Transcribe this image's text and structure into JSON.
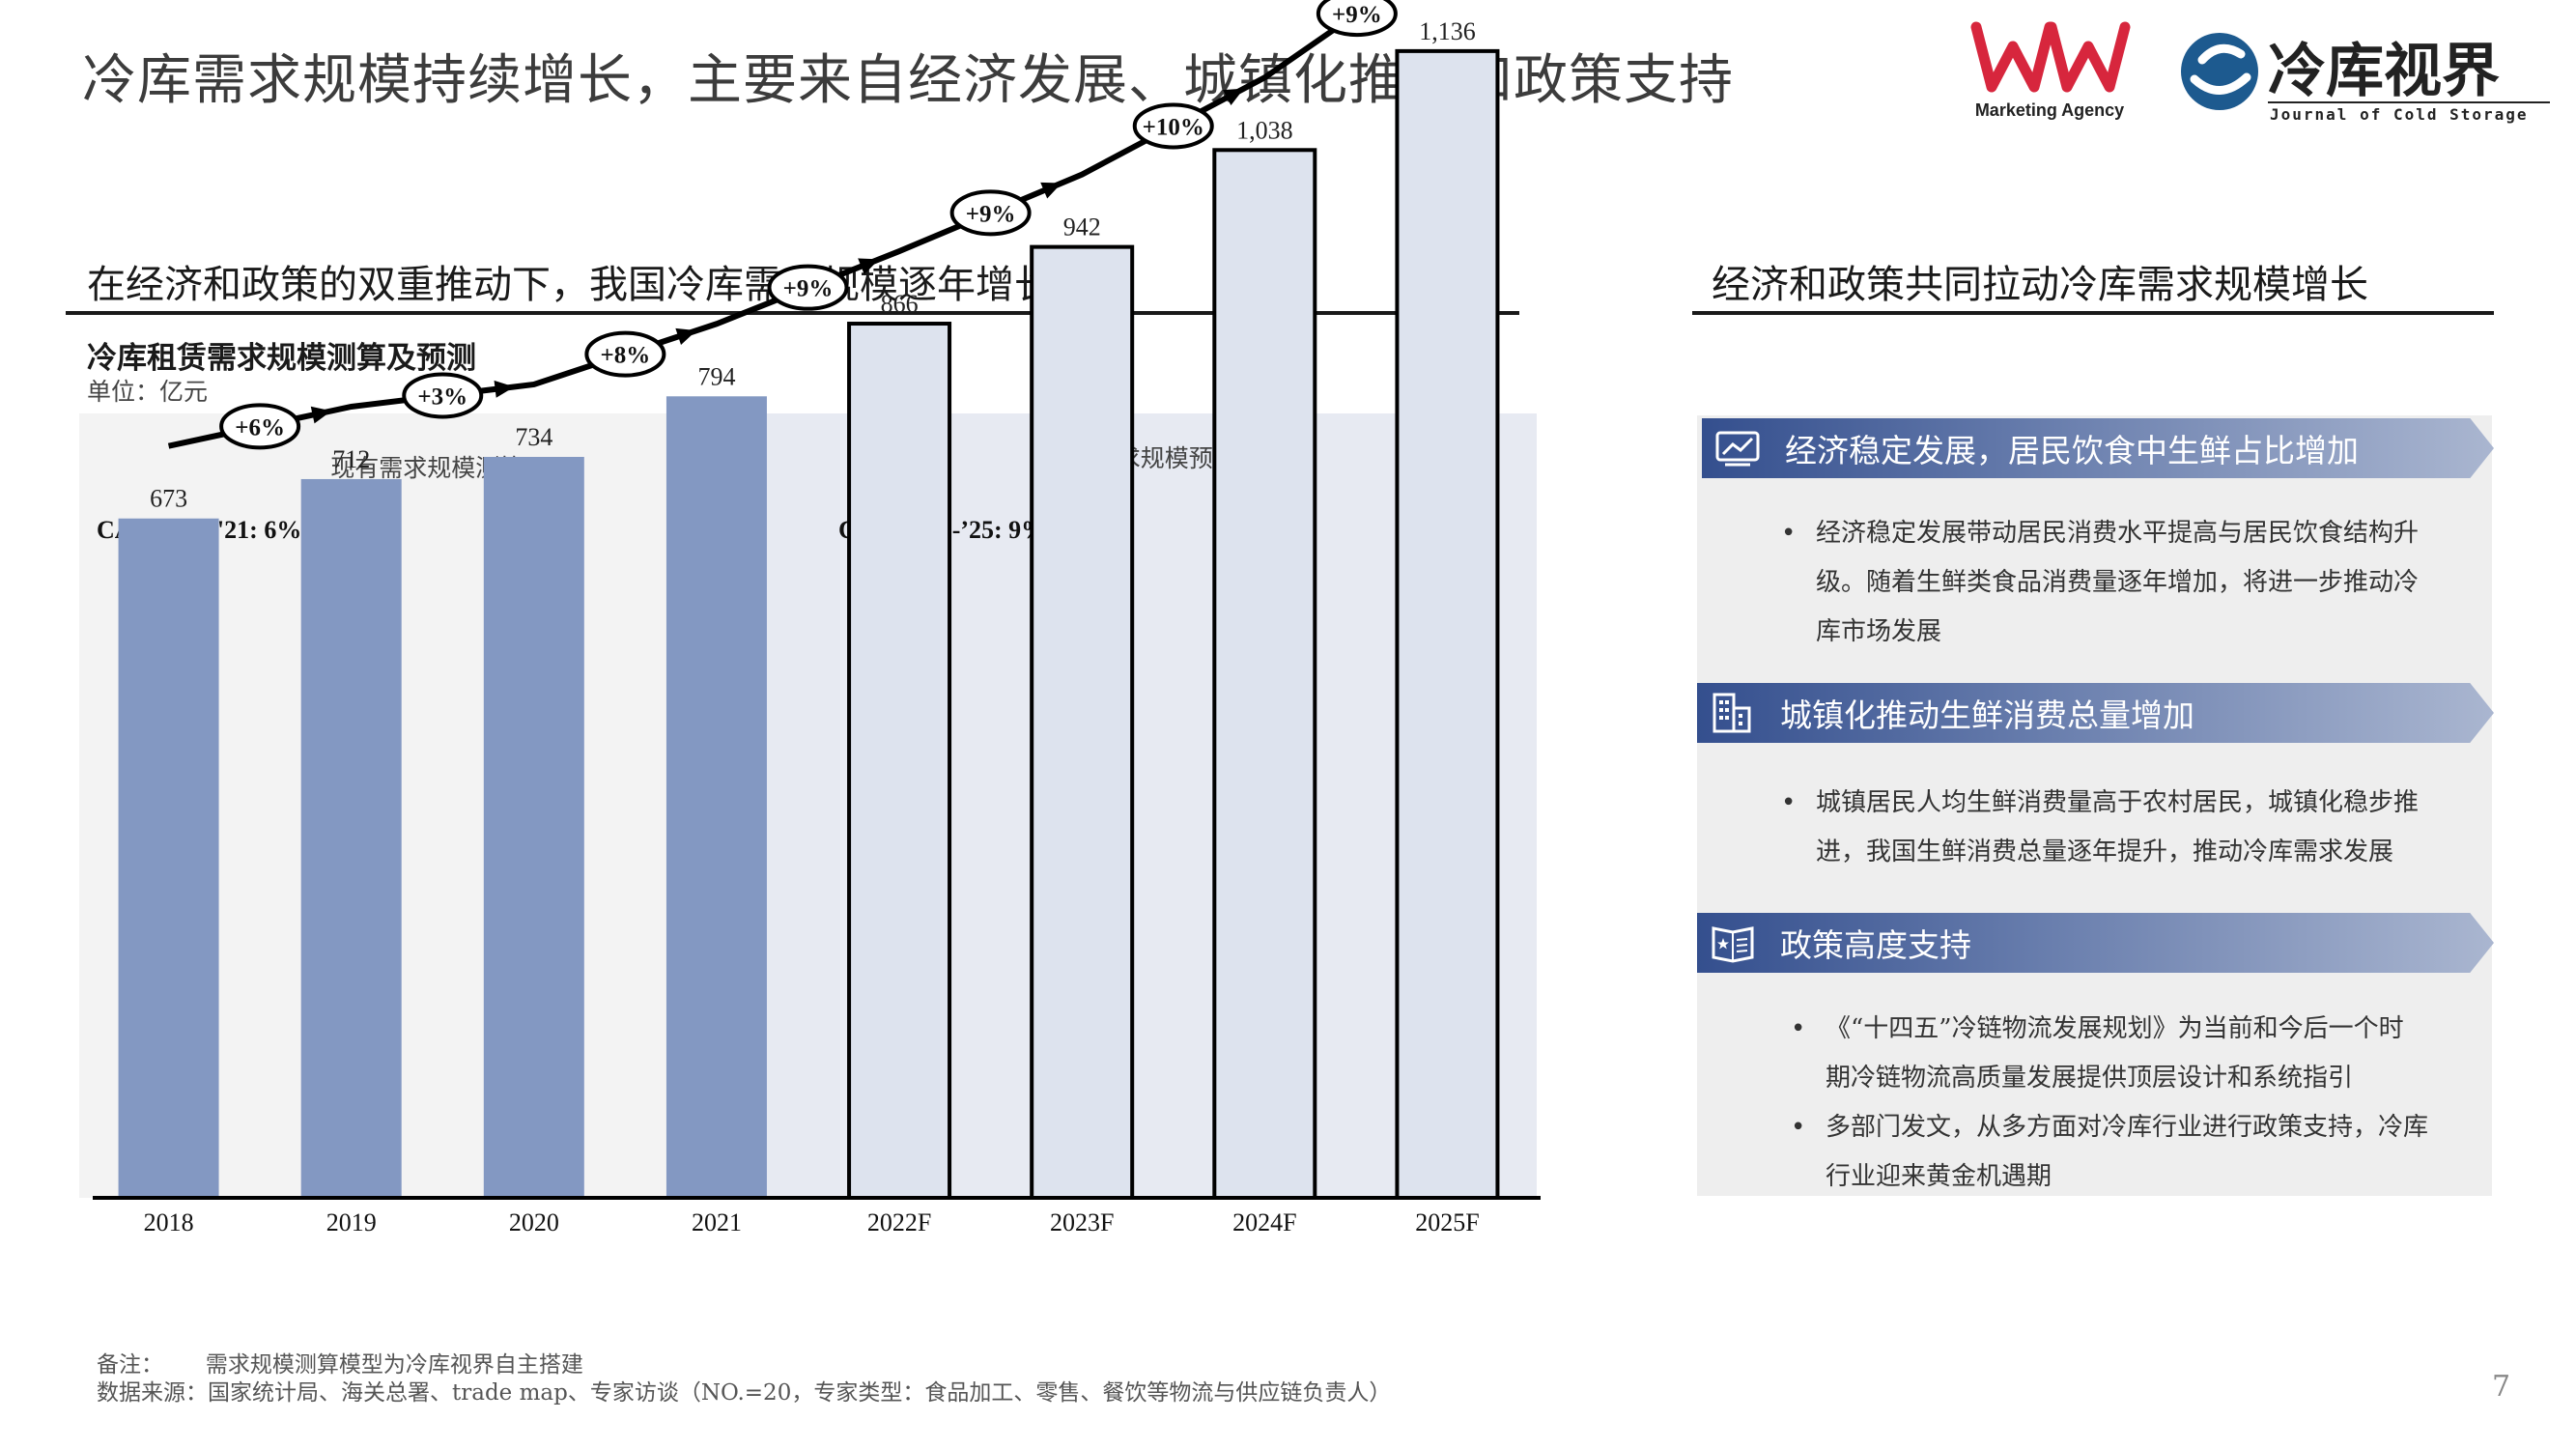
{
  "header": {
    "title": "冷库需求规模持续增长，主要来自经济发展、城镇化推进和政策支持",
    "logo_ma_text": "Marketing Agency",
    "logo_cs_name": "冷库视界",
    "logo_cs_sub": "Journal of Cold Storage"
  },
  "left": {
    "heading": "在经济和政策的双重推动下，我国冷库需求规模逐年增长",
    "chart_title": "冷库租赁需求规模测算及预测",
    "unit": "单位：亿元"
  },
  "chart_data": {
    "type": "bar",
    "categories": [
      "2018",
      "2019",
      "2020",
      "2021",
      "2022F",
      "2023F",
      "2024F",
      "2025F"
    ],
    "values": [
      673,
      712,
      734,
      794,
      866,
      942,
      1038,
      1136
    ],
    "value_labels": [
      "673",
      "712",
      "734",
      "794",
      "866",
      "942",
      "1,038",
      "1,136"
    ],
    "growth_labels": [
      "+6%",
      "+3%",
      "+8%",
      "+9%",
      "+9%",
      "+10%",
      "+9%"
    ],
    "regions": [
      {
        "label": "现有需求规模测算",
        "cagr": "CAGR '18-'21: 6%"
      },
      {
        "label": "未来需求规模预测",
        "cagr": "CAGR ‘22-’25: 9%"
      }
    ],
    "ylim": [
      0,
      1350
    ],
    "colors": {
      "actual": "#8398c2",
      "forecast": "#dde3ee",
      "actual_bg": "#f3f3f3",
      "forecast_bg": "#e7eaf2"
    }
  },
  "right": {
    "heading": "经济和政策共同拉动冷库需求规模增长",
    "sections": [
      {
        "title": "经济稳定发展，居民饮食中生鲜占比增加",
        "icon": "trend-chart-icon",
        "bullets": [
          [
            "经济稳定发展带动居民消费水平提高与居民饮食结构升",
            "级。随着生鲜类食品消费量逐年增加，将进一步推动冷",
            "库市场发展"
          ]
        ]
      },
      {
        "title": "城镇化推动生鲜消费总量增加",
        "icon": "city-building-icon",
        "bullets": [
          [
            "城镇居民人均生鲜消费量高于农村居民，城镇化稳步推",
            "进，我国生鲜消费总量逐年提升，推动冷库需求发展"
          ]
        ]
      },
      {
        "title": "政策高度支持",
        "icon": "policy-book-icon",
        "bullets": [
          [
            "《“十四五”冷链物流发展规划》为当前和今后一个时",
            "期冷链物流高质量发展提供顶层设计和系统指引"
          ],
          [
            "多部门发文，从多方面对冷库行业进行政策支持，冷库",
            "行业迎来黄金机遇期"
          ]
        ]
      }
    ]
  },
  "footer": {
    "note": "备注：      需求规模测算模型为冷库视界自主搭建",
    "source": "数据来源：国家统计局、海关总署、trade map、专家访谈（NO.=20，专家类型：食品加工、零售、餐饮等物流与供应链负责人）",
    "page": "7"
  }
}
